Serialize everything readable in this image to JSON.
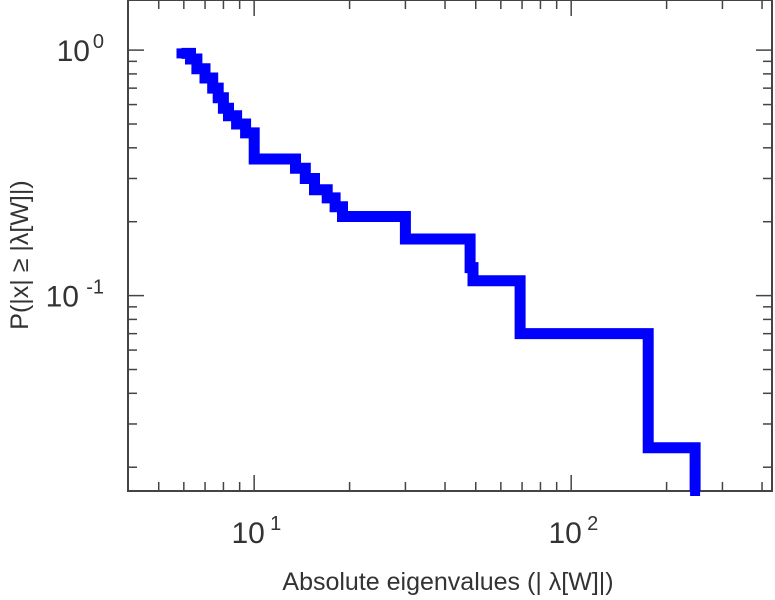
{
  "chart_data": {
    "type": "line",
    "title": "",
    "xlabel": "Absolute eigenvalues (|     λ[W]|)",
    "ylabel": "P(|x|  ≥ |λ[W]|)",
    "x_scale": "log",
    "y_scale": "log",
    "xlim": [
      4,
      430
    ],
    "ylim": [
      0.016,
      1.6
    ],
    "x_ticks": [
      {
        "base": "10",
        "exp": "1",
        "value": 10
      },
      {
        "base": "10",
        "exp": "2",
        "value": 100
      }
    ],
    "y_ticks": [
      {
        "base": "10",
        "exp": "0",
        "value": 1
      },
      {
        "base": "10",
        "exp": "-1",
        "value": 0.1
      }
    ],
    "grid": false,
    "color": "#0000ff",
    "series": [
      {
        "x": [
          5.9,
          6.3,
          6.6,
          7.0,
          7.4,
          7.7,
          8.0,
          8.3,
          8.8,
          9.4,
          10.0,
          12.0,
          13.5,
          14.5,
          15.5,
          17.0,
          18.0,
          19.0,
          20.0,
          24.0,
          30.0,
          31.0,
          35.0,
          40.0,
          44.0,
          48.0,
          49.0,
          60.0,
          68.0,
          69.0,
          80.0,
          100.0,
          150.0,
          170.0,
          175.0,
          200.0,
          246.0,
          246.0
        ],
        "y": [
          0.97,
          0.92,
          0.84,
          0.77,
          0.7,
          0.64,
          0.58,
          0.54,
          0.5,
          0.46,
          0.36,
          0.36,
          0.33,
          0.3,
          0.27,
          0.25,
          0.23,
          0.21,
          0.21,
          0.21,
          0.17,
          0.17,
          0.17,
          0.17,
          0.17,
          0.13,
          0.115,
          0.115,
          0.115,
          0.07,
          0.07,
          0.07,
          0.07,
          0.07,
          0.024,
          0.024,
          0.024,
          0.016
        ]
      }
    ]
  }
}
